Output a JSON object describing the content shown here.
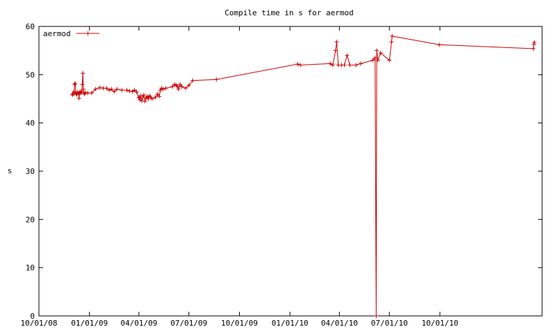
{
  "chart_data": {
    "type": "line",
    "title": "Compile time in s for aermod",
    "xlabel": "",
    "ylabel": "s",
    "ylim": [
      0,
      60
    ],
    "xlim": [
      "2008-10-01",
      "2011-04-05"
    ],
    "grid": false,
    "legend_position": "top-left",
    "x_tick_labels": [
      "10/01/08",
      "01/01/09",
      "04/01/09",
      "07/01/09",
      "10/01/09",
      "01/01/10",
      "04/01/10",
      "07/01/10",
      "10/01/10"
    ],
    "x_ticks": [
      "2008-10-01",
      "2009-01-01",
      "2009-04-01",
      "2009-07-01",
      "2009-10-01",
      "2010-01-01",
      "2010-04-01",
      "2010-07-01",
      "2010-10-01"
    ],
    "y_ticks": [
      0,
      10,
      20,
      30,
      40,
      50,
      60
    ],
    "series": [
      {
        "name": "aermod",
        "color": "#cc0000",
        "marker": "plus",
        "points": [
          [
            "2008-12-01",
            45.8
          ],
          [
            "2008-12-02",
            46.0
          ],
          [
            "2008-12-03",
            46.2
          ],
          [
            "2008-12-04",
            46.5
          ],
          [
            "2008-12-05",
            48.0
          ],
          [
            "2008-12-06",
            48.2
          ],
          [
            "2008-12-07",
            46.3
          ],
          [
            "2008-12-08",
            46.0
          ],
          [
            "2008-12-09",
            45.9
          ],
          [
            "2008-12-10",
            46.4
          ],
          [
            "2008-12-12",
            46.1
          ],
          [
            "2008-12-13",
            45.1
          ],
          [
            "2008-12-14",
            46.3
          ],
          [
            "2008-12-15",
            46.2
          ],
          [
            "2008-12-16",
            46.5
          ],
          [
            "2008-12-17",
            46.2
          ],
          [
            "2008-12-18",
            46.5
          ],
          [
            "2008-12-19",
            48.0
          ],
          [
            "2008-12-20",
            50.3
          ],
          [
            "2008-12-21",
            47.0
          ],
          [
            "2008-12-22",
            46.2
          ],
          [
            "2008-12-23",
            46.0
          ],
          [
            "2008-12-25",
            46.3
          ],
          [
            "2008-12-29",
            46.2
          ],
          [
            "2009-01-05",
            46.2
          ],
          [
            "2009-01-12",
            47.0
          ],
          [
            "2009-01-20",
            47.3
          ],
          [
            "2009-01-26",
            47.2
          ],
          [
            "2009-02-01",
            47.2
          ],
          [
            "2009-02-06",
            46.8
          ],
          [
            "2009-02-10",
            47.0
          ],
          [
            "2009-02-15",
            46.5
          ],
          [
            "2009-02-20",
            47.0
          ],
          [
            "2009-03-01",
            46.8
          ],
          [
            "2009-03-10",
            46.8
          ],
          [
            "2009-03-15",
            46.6
          ],
          [
            "2009-03-20",
            46.5
          ],
          [
            "2009-03-24",
            46.8
          ],
          [
            "2009-03-28",
            46.4
          ],
          [
            "2009-04-01",
            45.2
          ],
          [
            "2009-04-02",
            45.3
          ],
          [
            "2009-04-03",
            44.8
          ],
          [
            "2009-04-04",
            45.6
          ],
          [
            "2009-04-06",
            44.6
          ],
          [
            "2009-04-08",
            45.3
          ],
          [
            "2009-04-10",
            45.8
          ],
          [
            "2009-04-12",
            44.5
          ],
          [
            "2009-04-14",
            45.2
          ],
          [
            "2009-04-16",
            45.5
          ],
          [
            "2009-04-18",
            45.0
          ],
          [
            "2009-04-20",
            45.6
          ],
          [
            "2009-04-22",
            45.4
          ],
          [
            "2009-04-25",
            45.0
          ],
          [
            "2009-05-01",
            45.3
          ],
          [
            "2009-05-05",
            46.0
          ],
          [
            "2009-05-08",
            45.5
          ],
          [
            "2009-05-10",
            46.8
          ],
          [
            "2009-05-12",
            47.2
          ],
          [
            "2009-05-15",
            47.0
          ],
          [
            "2009-05-20",
            47.2
          ],
          [
            "2009-06-01",
            47.5
          ],
          [
            "2009-06-05",
            48.0
          ],
          [
            "2009-06-08",
            47.8
          ],
          [
            "2009-06-10",
            47.6
          ],
          [
            "2009-06-12",
            47.0
          ],
          [
            "2009-06-15",
            48.0
          ],
          [
            "2009-06-18",
            47.5
          ],
          [
            "2009-06-25",
            47.2
          ],
          [
            "2009-07-01",
            47.8
          ],
          [
            "2009-07-08",
            48.8
          ],
          [
            "2009-08-20",
            49.0
          ],
          [
            "2010-01-15",
            52.2
          ],
          [
            "2010-01-20",
            52.0
          ],
          [
            "2010-03-15",
            52.3
          ],
          [
            "2010-03-20",
            52.0
          ],
          [
            "2010-03-25",
            55.0
          ],
          [
            "2010-03-27",
            56.8
          ],
          [
            "2010-03-30",
            52.0
          ],
          [
            "2010-04-05",
            52.0
          ],
          [
            "2010-04-10",
            52.0
          ],
          [
            "2010-04-15",
            54.0
          ],
          [
            "2010-04-20",
            52.0
          ],
          [
            "2010-05-01",
            52.0
          ],
          [
            "2010-05-10",
            52.3
          ],
          [
            "2010-06-01",
            53.0
          ],
          [
            "2010-06-05",
            53.5
          ],
          [
            "2010-06-07",
            0.0
          ],
          [
            "2010-06-08",
            55.0
          ],
          [
            "2010-06-10",
            53.0
          ],
          [
            "2010-06-15",
            54.5
          ],
          [
            "2010-07-01",
            53.0
          ],
          [
            "2010-07-05",
            56.8
          ],
          [
            "2010-07-06",
            58.0
          ],
          [
            "2010-09-30",
            56.2
          ],
          [
            "2011-03-20",
            55.4
          ],
          [
            "2011-03-21",
            56.3
          ],
          [
            "2011-03-22",
            56.7
          ]
        ]
      }
    ]
  }
}
